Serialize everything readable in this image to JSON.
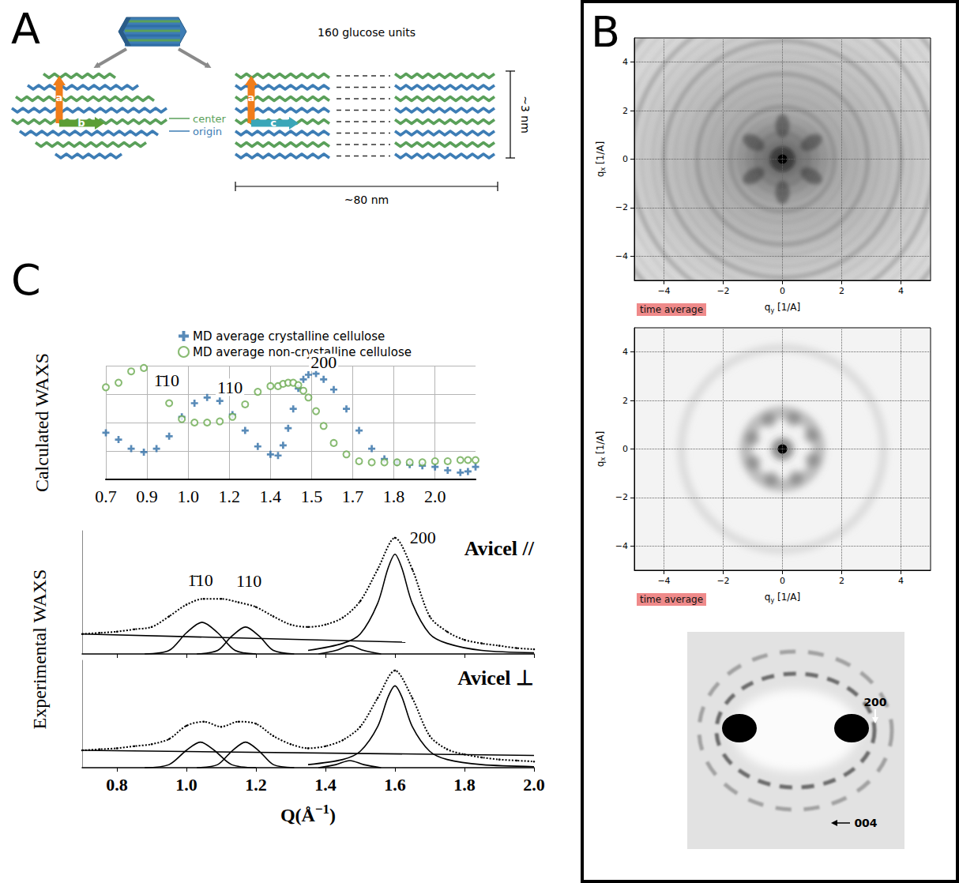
{
  "panel_A": {
    "letter": "A",
    "length_units": "160 glucose units",
    "height": "~3 nm",
    "length": "~80 nm",
    "layer_labels": [
      "center",
      "origin"
    ],
    "cross_section_axes": [
      "a",
      "b"
    ],
    "side_axes": [
      "a",
      "c"
    ]
  },
  "panel_B": {
    "letter": "B",
    "images": [
      {
        "xlabel": {
          "text": "q",
          "sub": "y",
          "after": " [1/A]"
        },
        "ylabel": {
          "text": "q",
          "sub": "x",
          "after": " [1/A]"
        },
        "xlim": [
          -5,
          5
        ],
        "ylim": [
          -5,
          5
        ],
        "xticks": [
          {
            "value": -4,
            "label": "−4"
          },
          {
            "value": -2,
            "label": "−2"
          },
          0,
          2,
          4
        ],
        "yticks": [
          {
            "value": -4,
            "label": "−4"
          },
          {
            "value": -2,
            "label": "−2"
          },
          0,
          2,
          4
        ],
        "grid": true,
        "badge": "time average"
      },
      {
        "xlabel": {
          "text": "q",
          "sub": "y",
          "after": " [1/A]"
        },
        "ylabel": {
          "text": "q",
          "sub": "x",
          "after": " [1/A]"
        },
        "xlim": [
          -5,
          5
        ],
        "ylim": [
          -5,
          5
        ],
        "xticks": [
          {
            "value": -4,
            "label": "−4"
          },
          {
            "value": -2,
            "label": "−2"
          },
          0,
          2,
          4
        ],
        "yticks": [
          {
            "value": -4,
            "label": "−4"
          },
          {
            "value": -2,
            "label": "−2"
          },
          0,
          2,
          4
        ],
        "grid": true,
        "badge": "time average"
      }
    ],
    "fiber_pattern": {
      "reflections": [
        "200",
        "004"
      ]
    }
  },
  "panel_C": {
    "letter": "C",
    "experimental_ylabel": "Experimental WAXS"
  },
  "chart_data": [
    {
      "type": "scatter",
      "ylabel": "Calculated WAXS",
      "legend": "top",
      "grid": true,
      "tick_labels": "x",
      "xlim": [
        0.7,
        2.16
      ],
      "ylim": [
        0,
        1
      ],
      "xticks": [
        0.7,
        {
          "value": 0.8625,
          "label": "0.9"
        },
        {
          "value": 1.025,
          "label": "1.0"
        },
        {
          "value": 1.1875,
          "label": "1.2"
        },
        {
          "value": 1.35,
          "label": "1.4"
        },
        {
          "value": 1.5125,
          "label": "1.5"
        },
        {
          "value": 1.675,
          "label": "1.7"
        },
        {
          "value": 1.8375,
          "label": "1.8"
        },
        {
          "value": 2.0,
          "label": "2.0"
        }
      ],
      "yticks": [
        0,
        0.25,
        0.5,
        0.75,
        1
      ],
      "annotations": [
        {
          "text": "1̄10",
          "x": 0.94,
          "y": 0.87
        },
        {
          "text": "110",
          "x": 1.19,
          "y": 0.81
        },
        {
          "text": "200",
          "x": 1.56,
          "y": 1.03
        }
      ],
      "x": [
        0.7,
        0.75,
        0.8,
        0.85,
        0.9,
        0.95,
        1.0,
        1.05,
        1.1,
        1.15,
        1.2,
        1.25,
        1.3,
        1.35,
        1.38,
        1.4,
        1.42,
        1.44,
        1.46,
        1.48,
        1.5,
        1.53,
        1.56,
        1.6,
        1.65,
        1.7,
        1.75,
        1.8,
        1.85,
        1.9,
        1.95,
        2.0,
        2.05,
        2.1,
        2.13,
        2.16
      ],
      "series": [
        {
          "name": "MD average crystalline cellulose",
          "color": "#2f6ea6",
          "marker": "plus",
          "values": [
            0.41,
            0.35,
            0.27,
            0.24,
            0.27,
            0.38,
            0.55,
            0.67,
            0.72,
            0.69,
            0.57,
            0.43,
            0.29,
            0.22,
            0.21,
            0.3,
            0.45,
            0.62,
            0.8,
            0.88,
            0.92,
            0.93,
            0.88,
            0.79,
            0.62,
            0.43,
            0.27,
            0.18,
            0.15,
            0.13,
            0.12,
            0.11,
            0.08,
            0.06,
            0.07,
            0.11
          ]
        },
        {
          "name": "MD average non-crystalline cellulose",
          "color": "#6aaa4f",
          "marker": "open_circle",
          "values": [
            0.81,
            0.85,
            0.95,
            0.98,
            0.88,
            0.67,
            0.53,
            0.5,
            0.5,
            0.51,
            0.55,
            0.66,
            0.77,
            0.82,
            0.82,
            0.84,
            0.85,
            0.85,
            0.83,
            0.78,
            0.72,
            0.6,
            0.47,
            0.32,
            0.22,
            0.16,
            0.15,
            0.15,
            0.15,
            0.15,
            0.15,
            0.16,
            0.16,
            0.17,
            0.17,
            0.17
          ]
        }
      ]
    },
    {
      "type": "line",
      "title": "Avicel //",
      "grid": false,
      "tick_labels": false,
      "xlim": [
        0.7,
        2.0
      ],
      "ylim": [
        0,
        1.05
      ],
      "xticks": [
        0.8,
        {
          "value": 1,
          "label": "1.0"
        },
        1.2,
        1.4,
        1.6,
        1.8,
        {
          "value": 2,
          "label": "2.0"
        }
      ],
      "annotations": [
        {
          "text": "1̄10",
          "x": 1.04,
          "y": 0.63
        },
        {
          "text": "110",
          "x": 1.18,
          "y": 0.62
        },
        {
          "text": "200",
          "x": 1.68,
          "y": 0.99
        }
      ],
      "series": [
        {
          "color": "#000000",
          "marker": "dot",
          "line_style": "dotted",
          "x": [
            0.7,
            0.75,
            0.8,
            0.85,
            0.9,
            0.95,
            1.0,
            1.05,
            1.1,
            1.15,
            1.2,
            1.25,
            1.3,
            1.35,
            1.4,
            1.45,
            1.5,
            1.55,
            1.6,
            1.65,
            1.7,
            1.75,
            1.8,
            1.85,
            1.9,
            1.95,
            2.0
          ],
          "values": [
            0.17,
            0.18,
            0.19,
            0.21,
            0.23,
            0.32,
            0.42,
            0.47,
            0.47,
            0.44,
            0.4,
            0.32,
            0.25,
            0.23,
            0.25,
            0.31,
            0.45,
            0.72,
            0.99,
            0.72,
            0.32,
            0.19,
            0.12,
            0.09,
            0.07,
            0.05,
            0.04
          ]
        },
        {
          "color": "#000000",
          "marker": "none",
          "line_style": "solid",
          "x": [
            0.88,
            0.95,
            1.0,
            1.045,
            1.09,
            1.14,
            1.2
          ],
          "values": [
            0,
            0.03,
            0.18,
            0.27,
            0.18,
            0.03,
            0
          ]
        },
        {
          "color": "#000000",
          "marker": "none",
          "line_style": "solid",
          "x": [
            1.03,
            1.09,
            1.13,
            1.17,
            1.21,
            1.25,
            1.31
          ],
          "values": [
            0,
            0.03,
            0.15,
            0.23,
            0.15,
            0.03,
            0
          ]
        },
        {
          "color": "#000000",
          "marker": "none",
          "line_style": "solid",
          "x": [
            1.35,
            1.45,
            1.5,
            1.55,
            1.58,
            1.6,
            1.62,
            1.65,
            1.7,
            1.75,
            1.85,
            2.0
          ],
          "values": [
            0.03,
            0.09,
            0.17,
            0.43,
            0.73,
            0.85,
            0.73,
            0.43,
            0.17,
            0.09,
            0.03,
            0.01
          ]
        },
        {
          "color": "#000000",
          "marker": "none",
          "line_style": "solid",
          "x": [
            1.38,
            1.43,
            1.47,
            1.51,
            1.56
          ],
          "values": [
            0,
            0.03,
            0.07,
            0.03,
            0
          ]
        },
        {
          "color": "#000000",
          "marker": "none",
          "line_style": "solid",
          "x": [
            0.7,
            1.63
          ],
          "values": [
            0.17,
            0.1
          ]
        }
      ]
    },
    {
      "type": "line",
      "title": "Avicel ⊥",
      "grid": false,
      "tick_labels": "x",
      "xlabel": {
        "text": "Q(Å",
        "sup": "−1",
        "after": ")"
      },
      "xlim": [
        0.7,
        2.0
      ],
      "ylim": [
        0,
        1.05
      ],
      "xticks": [
        0.8,
        {
          "value": 1,
          "label": "1.0"
        },
        1.2,
        1.4,
        1.6,
        1.8,
        {
          "value": 2,
          "label": "2.0"
        }
      ],
      "series": [
        {
          "color": "#000000",
          "marker": "dot",
          "line_style": "dotted",
          "x": [
            0.7,
            0.75,
            0.8,
            0.85,
            0.9,
            0.95,
            1.0,
            1.05,
            1.1,
            1.15,
            1.2,
            1.25,
            1.3,
            1.35,
            1.4,
            1.45,
            1.5,
            1.55,
            1.6,
            1.65,
            1.7,
            1.75,
            1.8,
            1.85,
            1.9,
            1.95,
            2.0
          ],
          "values": [
            0.17,
            0.18,
            0.19,
            0.21,
            0.23,
            0.28,
            0.41,
            0.45,
            0.4,
            0.45,
            0.43,
            0.31,
            0.23,
            0.19,
            0.21,
            0.27,
            0.4,
            0.68,
            0.95,
            0.68,
            0.31,
            0.18,
            0.13,
            0.1,
            0.08,
            0.07,
            0.06
          ]
        },
        {
          "color": "#000000",
          "marker": "none",
          "line_style": "solid",
          "x": [
            0.88,
            0.95,
            1.0,
            1.04,
            1.08,
            1.13,
            1.2
          ],
          "values": [
            0,
            0.03,
            0.17,
            0.25,
            0.17,
            0.03,
            0
          ]
        },
        {
          "color": "#000000",
          "marker": "none",
          "line_style": "solid",
          "x": [
            1.03,
            1.09,
            1.13,
            1.17,
            1.21,
            1.25,
            1.31
          ],
          "values": [
            0,
            0.03,
            0.16,
            0.25,
            0.16,
            0.03,
            0
          ]
        },
        {
          "color": "#000000",
          "marker": "none",
          "line_style": "solid",
          "x": [
            1.35,
            1.45,
            1.5,
            1.55,
            1.58,
            1.6,
            1.62,
            1.65,
            1.7,
            1.75,
            1.85,
            2.0
          ],
          "values": [
            0.03,
            0.08,
            0.16,
            0.4,
            0.69,
            0.8,
            0.69,
            0.4,
            0.16,
            0.08,
            0.03,
            0.01
          ]
        },
        {
          "color": "#000000",
          "marker": "none",
          "line_style": "solid",
          "x": [
            1.38,
            1.43,
            1.47,
            1.51,
            1.56
          ],
          "values": [
            0,
            0.03,
            0.07,
            0.03,
            0
          ]
        },
        {
          "color": "#000000",
          "marker": "none",
          "line_style": "solid",
          "x": [
            0.7,
            2.0
          ],
          "values": [
            0.17,
            0.12
          ]
        }
      ]
    }
  ]
}
